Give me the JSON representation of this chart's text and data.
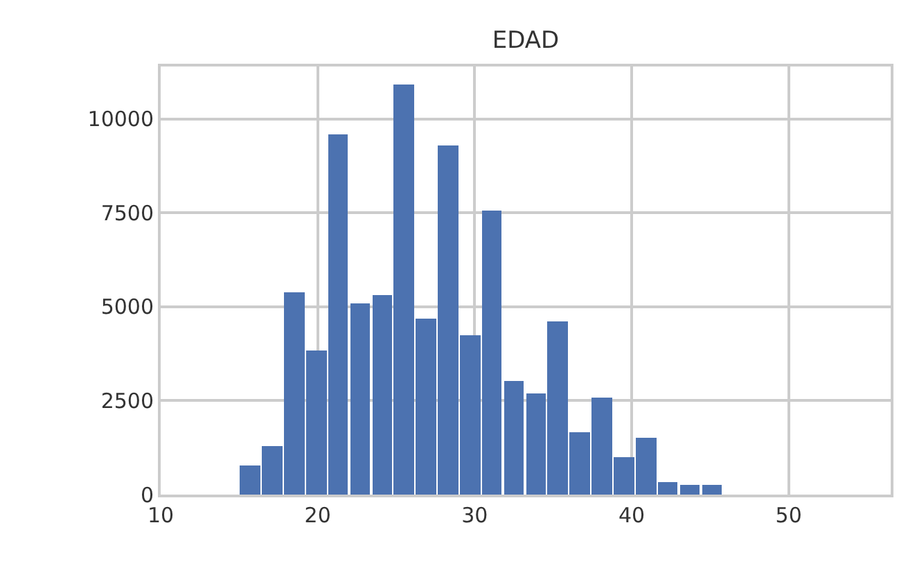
{
  "chart_data": {
    "type": "histogram",
    "title": "EDAD",
    "bins": [
      15,
      16.4,
      17.8,
      19.2,
      20.6,
      22,
      23.4,
      24.8,
      26.2,
      27.6,
      29,
      30.4,
      31.8,
      33.2,
      34.6,
      36,
      37.4,
      38.8,
      40.2,
      41.6,
      43,
      44.4,
      45.8
    ],
    "values": [
      760,
      1300,
      5390,
      3820,
      9580,
      5090,
      5320,
      10930,
      4670,
      9290,
      4250,
      7570,
      3030,
      2680,
      4600,
      1670,
      2600,
      980,
      1530,
      340,
      250,
      250
    ],
    "color": "#4c72b0",
    "xlim": [
      10,
      56.5
    ],
    "xticks": [
      10,
      20,
      30,
      40,
      50
    ],
    "ylim": [
      0,
      11400
    ],
    "yticks": [
      0,
      2500,
      5000,
      7500,
      10000
    ],
    "grid": true
  }
}
